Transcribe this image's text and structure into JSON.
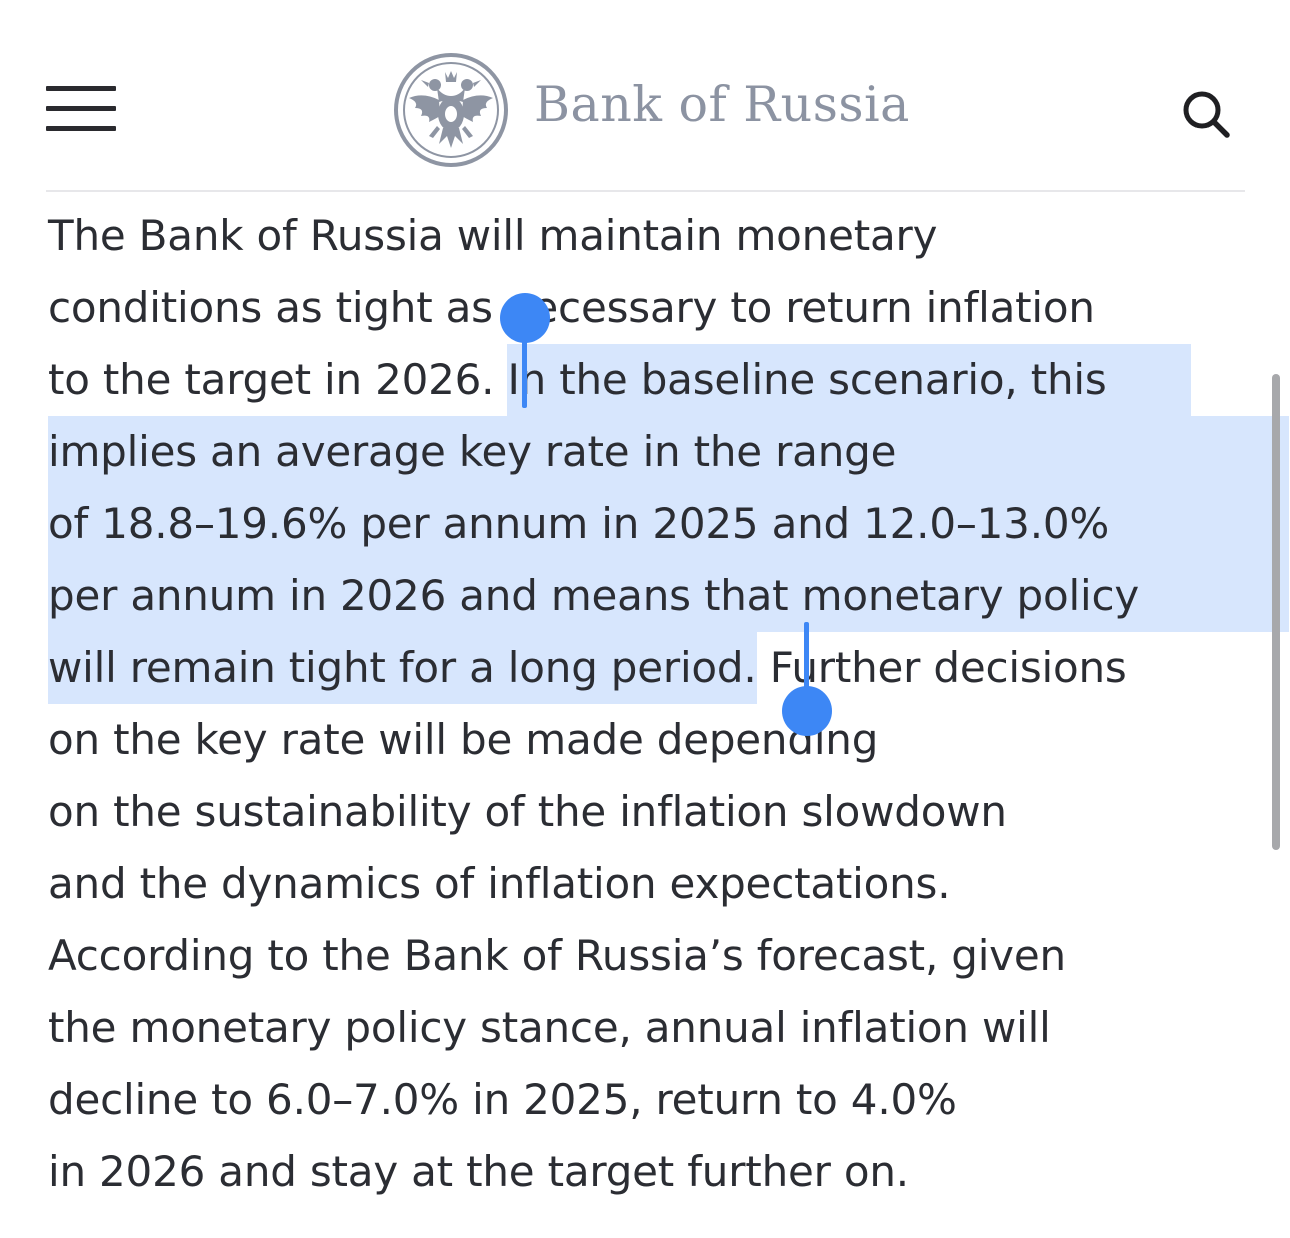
{
  "header": {
    "menu_icon": "hamburger-icon",
    "logo_icon": "double-headed-eagle-emblem",
    "brand": "Bank of Russia",
    "search_icon": "search-icon"
  },
  "article": {
    "lines": [
      "The Bank of Russia will maintain monetary",
      "conditions as tight as necessary to return inflation",
      "to the target in 2026. ",
      "In the baseline scenario, this",
      "implies an average key rate in the range",
      "of 18.8–19.6% per annum in 2025 and 12.0–13.0%",
      "per annum in 2026 and means that monetary policy",
      "will remain tight for a long period.",
      " Further decisions",
      "on the key rate will be made depending",
      "on the sustainability of the inflation slowdown",
      "and the dynamics of inflation expectations.",
      "According to the Bank of Russia’s forecast, given",
      "the monetary policy stance, annual inflation will",
      "decline to 6.0–7.0% in 2025, return to 4.0%",
      "in 2026 and stay at the target further on."
    ]
  },
  "colors": {
    "selection": "#d7e6fd",
    "selection_handle": "#3d87f5",
    "brand_text": "#8c93a2",
    "body_text": "#2b2d33"
  }
}
